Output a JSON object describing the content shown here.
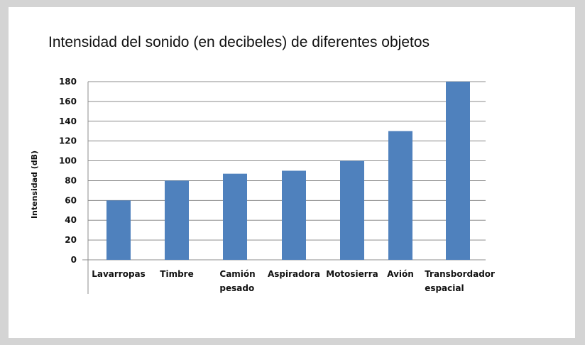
{
  "chart_data": {
    "type": "bar",
    "title": "Intensidad del sonido (en decibeles) de diferentes objetos",
    "ylabel": "Intensidad (dB)",
    "xlabel": "",
    "categories": [
      [
        "Lavarropas"
      ],
      [
        "Timbre"
      ],
      [
        "Camión",
        "pesado"
      ],
      [
        "Aspiradora"
      ],
      [
        "Motosierra"
      ],
      [
        "Avión"
      ],
      [
        "Transbordador",
        "espacial"
      ]
    ],
    "values": [
      60,
      80,
      87,
      90,
      100,
      130,
      180
    ],
    "ylim": [
      0,
      180
    ],
    "yticks": [
      0,
      20,
      40,
      60,
      80,
      100,
      120,
      140,
      160,
      180
    ],
    "grid": true,
    "bar_color": "#4f81bd",
    "grid_color": "#8c8c8c"
  }
}
